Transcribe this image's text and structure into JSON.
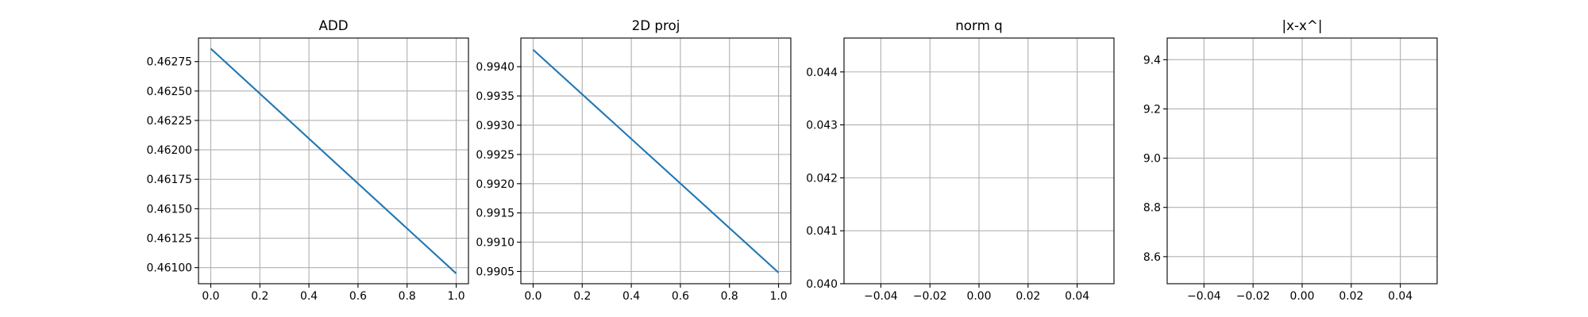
{
  "figure": {
    "background": "#ffffff"
  },
  "chart_data": [
    {
      "type": "line",
      "title": "ADD",
      "xlim": [
        -0.05,
        1.05
      ],
      "ylim": [
        0.460863,
        0.46295
      ],
      "xticks": [
        0.0,
        0.2,
        0.4,
        0.6,
        0.8,
        1.0
      ],
      "xtick_labels": [
        "0.0",
        "0.2",
        "0.4",
        "0.6",
        "0.8",
        "1.0"
      ],
      "yticks": [
        0.461,
        0.46125,
        0.4615,
        0.46175,
        0.462,
        0.46225,
        0.4625,
        0.46275
      ],
      "ytick_labels": [
        "0.46100",
        "0.46125",
        "0.46150",
        "0.46175",
        "0.46200",
        "0.46225",
        "0.46250",
        "0.46275"
      ],
      "grid": true,
      "series": [
        {
          "x": [
            0,
            1
          ],
          "y": [
            0.46286,
            0.46095
          ],
          "color": "#1f77b4"
        }
      ]
    },
    {
      "type": "line",
      "title": "2D proj",
      "xlim": [
        -0.05,
        1.05
      ],
      "ylim": [
        0.99029,
        0.99449
      ],
      "xticks": [
        0.0,
        0.2,
        0.4,
        0.6,
        0.8,
        1.0
      ],
      "xtick_labels": [
        "0.0",
        "0.2",
        "0.4",
        "0.6",
        "0.8",
        "1.0"
      ],
      "yticks": [
        0.9905,
        0.991,
        0.9915,
        0.992,
        0.9925,
        0.993,
        0.9935,
        0.994
      ],
      "ytick_labels": [
        "0.9905",
        "0.9910",
        "0.9915",
        "0.9920",
        "0.9925",
        "0.9930",
        "0.9935",
        "0.9940"
      ],
      "grid": true,
      "series": [
        {
          "x": [
            0,
            1
          ],
          "y": [
            0.99429,
            0.99048
          ],
          "color": "#1f77b4"
        }
      ]
    },
    {
      "type": "line",
      "title": "norm q",
      "xlim": [
        -0.055,
        0.055
      ],
      "ylim": [
        0.04,
        0.04464
      ],
      "xticks": [
        -0.04,
        -0.02,
        0.0,
        0.02,
        0.04
      ],
      "xtick_labels": [
        "−0.04",
        "−0.02",
        "0.00",
        "0.02",
        "0.04"
      ],
      "yticks": [
        0.04,
        0.041,
        0.042,
        0.043,
        0.044
      ],
      "ytick_labels": [
        "0.040",
        "0.041",
        "0.042",
        "0.043",
        "0.044"
      ],
      "grid": true,
      "series": []
    },
    {
      "type": "line",
      "title": "|x-x^|",
      "xlim": [
        -0.055,
        0.055
      ],
      "ylim": [
        8.49,
        9.488
      ],
      "xticks": [
        -0.04,
        -0.02,
        0.0,
        0.02,
        0.04
      ],
      "xtick_labels": [
        "−0.04",
        "−0.02",
        "0.00",
        "0.02",
        "0.04"
      ],
      "yticks": [
        8.6,
        8.8,
        9.0,
        9.2,
        9.4
      ],
      "ytick_labels": [
        "8.6",
        "8.8",
        "9.0",
        "9.2",
        "9.4"
      ],
      "grid": true,
      "series": []
    }
  ]
}
